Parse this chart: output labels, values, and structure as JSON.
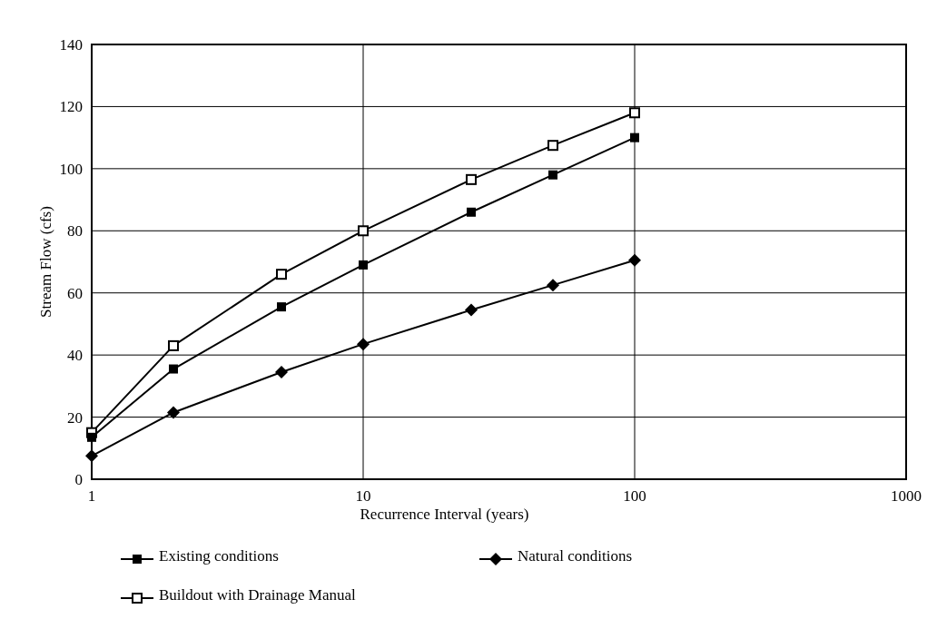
{
  "chart_data": {
    "type": "line",
    "xlabel": "Recurrence Interval (years)",
    "ylabel": "Stream Flow (cfs)",
    "log": "x",
    "xlim": [
      1,
      1000
    ],
    "xticks": [
      1,
      10,
      100,
      1000
    ],
    "ylim": [
      0,
      140
    ],
    "yticks": [
      0,
      20,
      40,
      60,
      80,
      100,
      120,
      140
    ],
    "grid": true,
    "legend": "bottom",
    "x": [
      1,
      2,
      5,
      10,
      25,
      50,
      100
    ],
    "series": [
      {
        "name": "Existing conditions",
        "color": "#000000",
        "marker": "square",
        "values": [
          13.5,
          35.5,
          55.5,
          69,
          86,
          98,
          110
        ]
      },
      {
        "name": "Natural conditions",
        "color": "#000000",
        "marker": "diamond",
        "values": [
          7.5,
          21.5,
          34.5,
          43.5,
          54.5,
          62.5,
          70.5
        ]
      },
      {
        "name": "Buildout with Drainage Manual",
        "color": "#000000",
        "marker": "square-open",
        "values": [
          15,
          43,
          66,
          80,
          96.5,
          107.5,
          118
        ]
      }
    ]
  }
}
